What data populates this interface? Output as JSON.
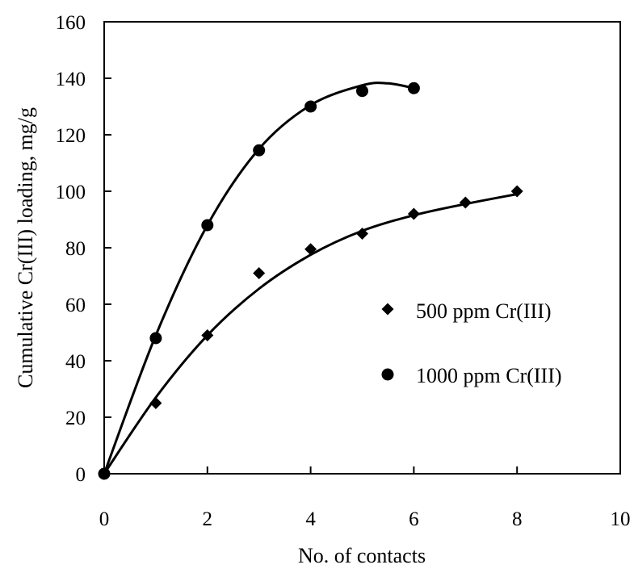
{
  "chart_data": {
    "type": "scatter",
    "xlabel": "No. of contacts",
    "ylabel": "Cumulative Cr(III) loading, mg/g",
    "xlim": [
      0,
      10
    ],
    "ylim": [
      0,
      160
    ],
    "x_ticks": [
      0,
      2,
      4,
      6,
      8,
      10
    ],
    "y_ticks": [
      0,
      20,
      40,
      60,
      80,
      100,
      120,
      140,
      160
    ],
    "grid": false,
    "legend_position": "right-center",
    "series": [
      {
        "name": "500 ppm Cr(III)",
        "marker": "diamond",
        "color": "#000000",
        "x": [
          0,
          1,
          2,
          3,
          4,
          5,
          6,
          7,
          8
        ],
        "y": [
          0,
          25,
          49,
          71,
          79.5,
          85,
          92,
          96,
          100
        ],
        "fit_curve": {
          "x": [
            0,
            1,
            2,
            3,
            4,
            5,
            6,
            7,
            8
          ],
          "y": [
            0,
            27,
            49,
            65.5,
            77.5,
            86,
            91.5,
            95.5,
            99
          ]
        }
      },
      {
        "name": "1000 ppm Cr(III)",
        "marker": "circle",
        "color": "#000000",
        "x": [
          0,
          1,
          2,
          3,
          4,
          5,
          6
        ],
        "y": [
          0,
          48,
          88,
          114.5,
          130,
          135.5,
          136.5
        ],
        "fit_curve": {
          "x": [
            0,
            1,
            2,
            3,
            4,
            5,
            5.5,
            6
          ],
          "y": [
            0,
            49,
            88,
            115,
            130.5,
            137.5,
            138.2,
            136.5
          ]
        }
      }
    ]
  }
}
